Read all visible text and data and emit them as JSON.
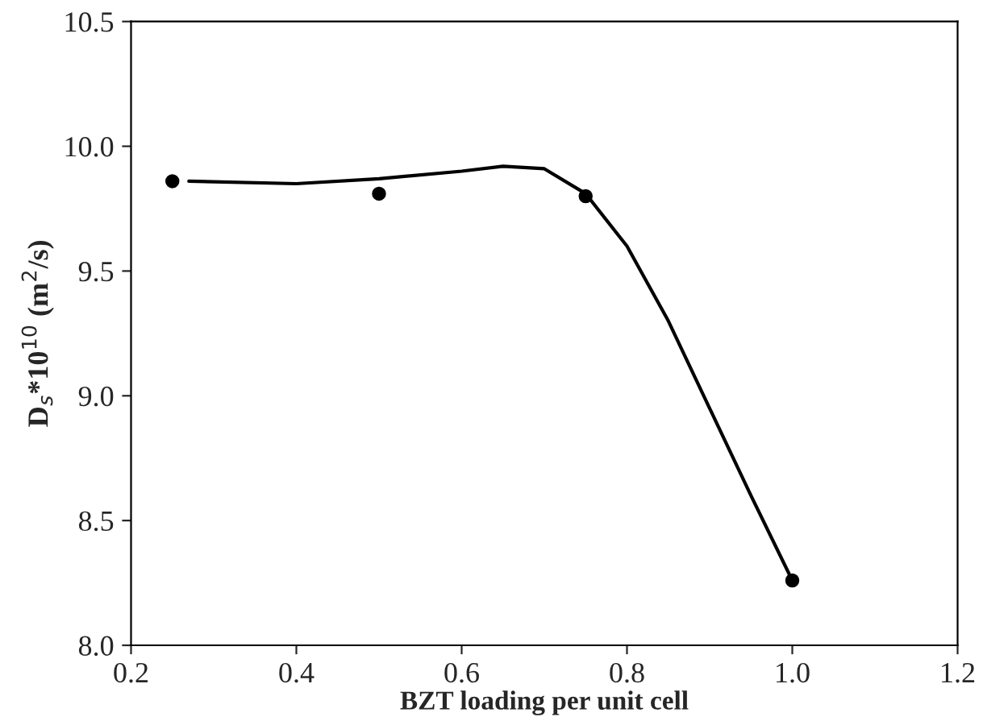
{
  "chart_data": {
    "type": "scatter",
    "xlabel": "BZT loading per unit cell",
    "ylabel": "D$_{s}$*10$^{10}$ (m$^{2}$/s)",
    "xlim": [
      0.2,
      1.2
    ],
    "xticks": [
      {
        "value": 0.2,
        "label": "0.2"
      },
      {
        "value": 0.4,
        "label": "0.4"
      },
      {
        "value": 0.6,
        "label": "0.6"
      },
      {
        "value": 0.8,
        "label": "0.8"
      },
      {
        "value": 1.0,
        "label": "1.0"
      },
      {
        "value": 1.2,
        "label": "1.2"
      }
    ],
    "ylim": [
      8.0,
      10.5
    ],
    "yticks": [
      {
        "value": 8.0,
        "label": "8.0"
      },
      {
        "value": 8.5,
        "label": "8.5"
      },
      {
        "value": 9.0,
        "label": "9.0"
      },
      {
        "value": 9.5,
        "label": "9.5"
      },
      {
        "value": 10.0,
        "label": "10.0"
      },
      {
        "value": 10.5,
        "label": "10.5"
      }
    ],
    "grid": false,
    "legend": false,
    "series": [
      {
        "color": "#000000",
        "marker": "circle",
        "x": [
          0.25,
          0.5,
          0.75,
          1.0
        ],
        "values": [
          9.86,
          9.81,
          9.8,
          8.26
        ]
      },
      {
        "type": "line",
        "color": "#000000",
        "marker": "none",
        "line_style": "solid",
        "x": [
          0.27,
          0.4,
          0.5,
          0.6,
          0.65,
          0.7,
          0.75,
          0.8,
          0.85,
          0.9,
          0.95,
          1.0
        ],
        "values": [
          9.86,
          9.85,
          9.87,
          9.9,
          9.92,
          9.91,
          9.81,
          9.6,
          9.3,
          8.95,
          8.6,
          8.26
        ]
      }
    ]
  }
}
